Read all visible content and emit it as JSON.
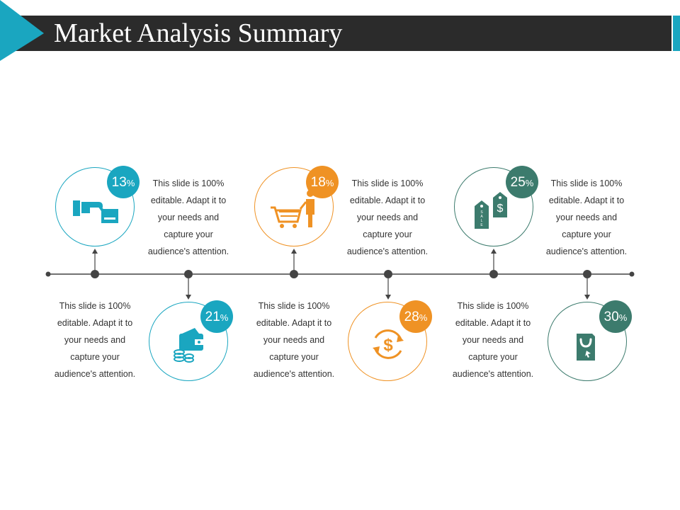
{
  "title": "Market Analysis Summary",
  "colors": {
    "teal": "#1aa6c0",
    "orange": "#ef9224",
    "green": "#3c7b6d",
    "dark": "#2b2b2b"
  },
  "items": [
    {
      "value": "13",
      "unit": "%",
      "icon": "hand-card-icon",
      "color": "teal",
      "text": [
        "This slide is 100%",
        "editable. Adapt it to",
        "your needs and",
        "capture your",
        "audience's attention."
      ]
    },
    {
      "value": "21",
      "unit": "%",
      "icon": "wallet-coins-icon",
      "color": "teal",
      "text": [
        "This slide is 100%",
        "editable. Adapt it to",
        "your needs and",
        "capture your",
        "audience's attention."
      ]
    },
    {
      "value": "18",
      "unit": "%",
      "icon": "shopping-cart-person-icon",
      "color": "orange",
      "text": [
        "This slide is 100%",
        "editable. Adapt it to",
        "your needs and",
        "capture your",
        "audience's attention."
      ]
    },
    {
      "value": "28",
      "unit": "%",
      "icon": "dollar-cycle-icon",
      "color": "orange",
      "text": [
        "This slide is 100%",
        "editable. Adapt it to",
        "your needs and",
        "capture your",
        "audience's attention."
      ]
    },
    {
      "value": "25",
      "unit": "%",
      "icon": "price-tags-icon",
      "color": "green",
      "text": [
        "This slide is 100%",
        "editable. Adapt it to",
        "your needs and",
        "capture your",
        "audience's attention."
      ]
    },
    {
      "value": "30",
      "unit": "%",
      "icon": "shopping-bag-icon",
      "color": "green",
      "text": [
        "This slide is 100%",
        "editable. Adapt it to",
        "your needs and",
        "capture your",
        "audience's attention."
      ]
    }
  ]
}
